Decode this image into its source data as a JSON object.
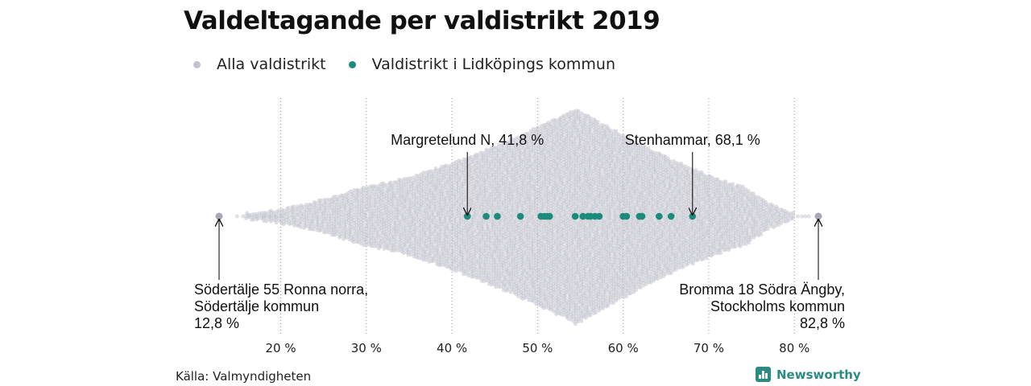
{
  "title": "Valdeltagande per valdistrikt 2019",
  "legend": [
    {
      "label": "Alla valdistrikt",
      "color": "#c3c3cd"
    },
    {
      "label": "Valdistrikt i Lidköpings kommun",
      "color": "#1b8c7c"
    }
  ],
  "source": "Källa: Valmyndigheten",
  "brand": {
    "name": "Newsworthy",
    "color": "#2a8c80"
  },
  "chart_data": {
    "type": "scatter",
    "subtype": "beeswarm",
    "title": "Valdeltagande per valdistrikt 2019",
    "x_range": [
      12.8,
      82.8
    ],
    "x_ticks": [
      20,
      30,
      40,
      50,
      60,
      70,
      80
    ],
    "tick_suffix": " %",
    "grid_x": true,
    "grid_style": "dotted",
    "series": [
      {
        "name": "Alla valdistrikt",
        "color": "#c3c3cd",
        "distribution_peak": 54.5,
        "extremes": [
          12.8,
          82.8
        ]
      },
      {
        "name": "Valdistrikt i Lidköpings kommun",
        "color": "#1b8c7c",
        "values": [
          41.8,
          44.0,
          45.3,
          48.0,
          50.4,
          50.8,
          51.1,
          51.4,
          54.4,
          55.3,
          55.9,
          56.2,
          56.7,
          57.2,
          60.0,
          60.4,
          61.9,
          62.2,
          64.2,
          65.6,
          68.1
        ]
      }
    ],
    "annotations": [
      {
        "x": 41.8,
        "lines": [
          "Margretelund N, 41,8 %"
        ],
        "position": "above"
      },
      {
        "x": 68.1,
        "lines": [
          "Stenhammar, 68,1 %"
        ],
        "position": "above"
      },
      {
        "x": 12.8,
        "lines": [
          "Södertälje 55 Ronna norra,",
          "Södertälje kommun",
          "12,8 %"
        ],
        "position": "below-left"
      },
      {
        "x": 82.8,
        "lines": [
          "Bromma 18 Södra Ängby,",
          "Stockholms kommun",
          "82,8 %"
        ],
        "position": "below-right"
      }
    ]
  }
}
